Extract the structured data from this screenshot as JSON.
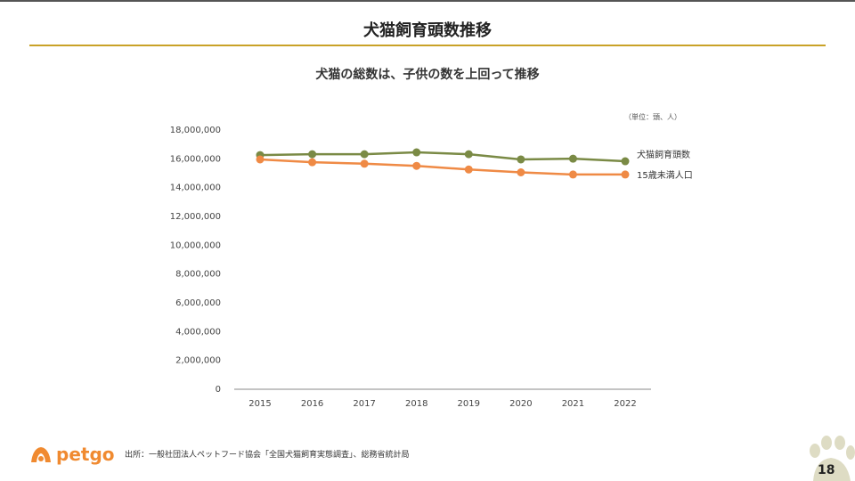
{
  "header": {
    "title": "犬猫飼育頭数推移"
  },
  "chart_data": {
    "type": "line",
    "title": "犬猫の総数は、子供の数を上回って推移",
    "unit_note": "（単位：頭、人）",
    "x": [
      "2015",
      "2016",
      "2017",
      "2018",
      "2019",
      "2020",
      "2021",
      "2022"
    ],
    "ylim": [
      0,
      18000000
    ],
    "yticks": [
      0,
      2000000,
      4000000,
      6000000,
      8000000,
      10000000,
      12000000,
      14000000,
      16000000,
      18000000
    ],
    "ytick_labels": [
      "0",
      "2,000,000",
      "4,000,000",
      "6,000,000",
      "8,000,000",
      "10,000,000",
      "12,000,000",
      "14,000,000",
      "16,000,000",
      "18,000,000"
    ],
    "legend": "right",
    "grid": false,
    "series": [
      {
        "name": "犬猫飼育頭数",
        "color": "#7a8a45",
        "values": [
          16200000,
          16260000,
          16260000,
          16390000,
          16260000,
          15900000,
          15950000,
          15770000
        ]
      },
      {
        "name": "15歳未満人口",
        "color": "#ef8a45",
        "values": [
          15900000,
          15700000,
          15600000,
          15450000,
          15200000,
          15000000,
          14850000,
          14850000
        ]
      }
    ]
  },
  "footer": {
    "logo": "petgo",
    "source": "出所：一般社団法人ペットフード協会「全国犬猫飼育実態調査」、総務省統計局",
    "page": "18"
  }
}
